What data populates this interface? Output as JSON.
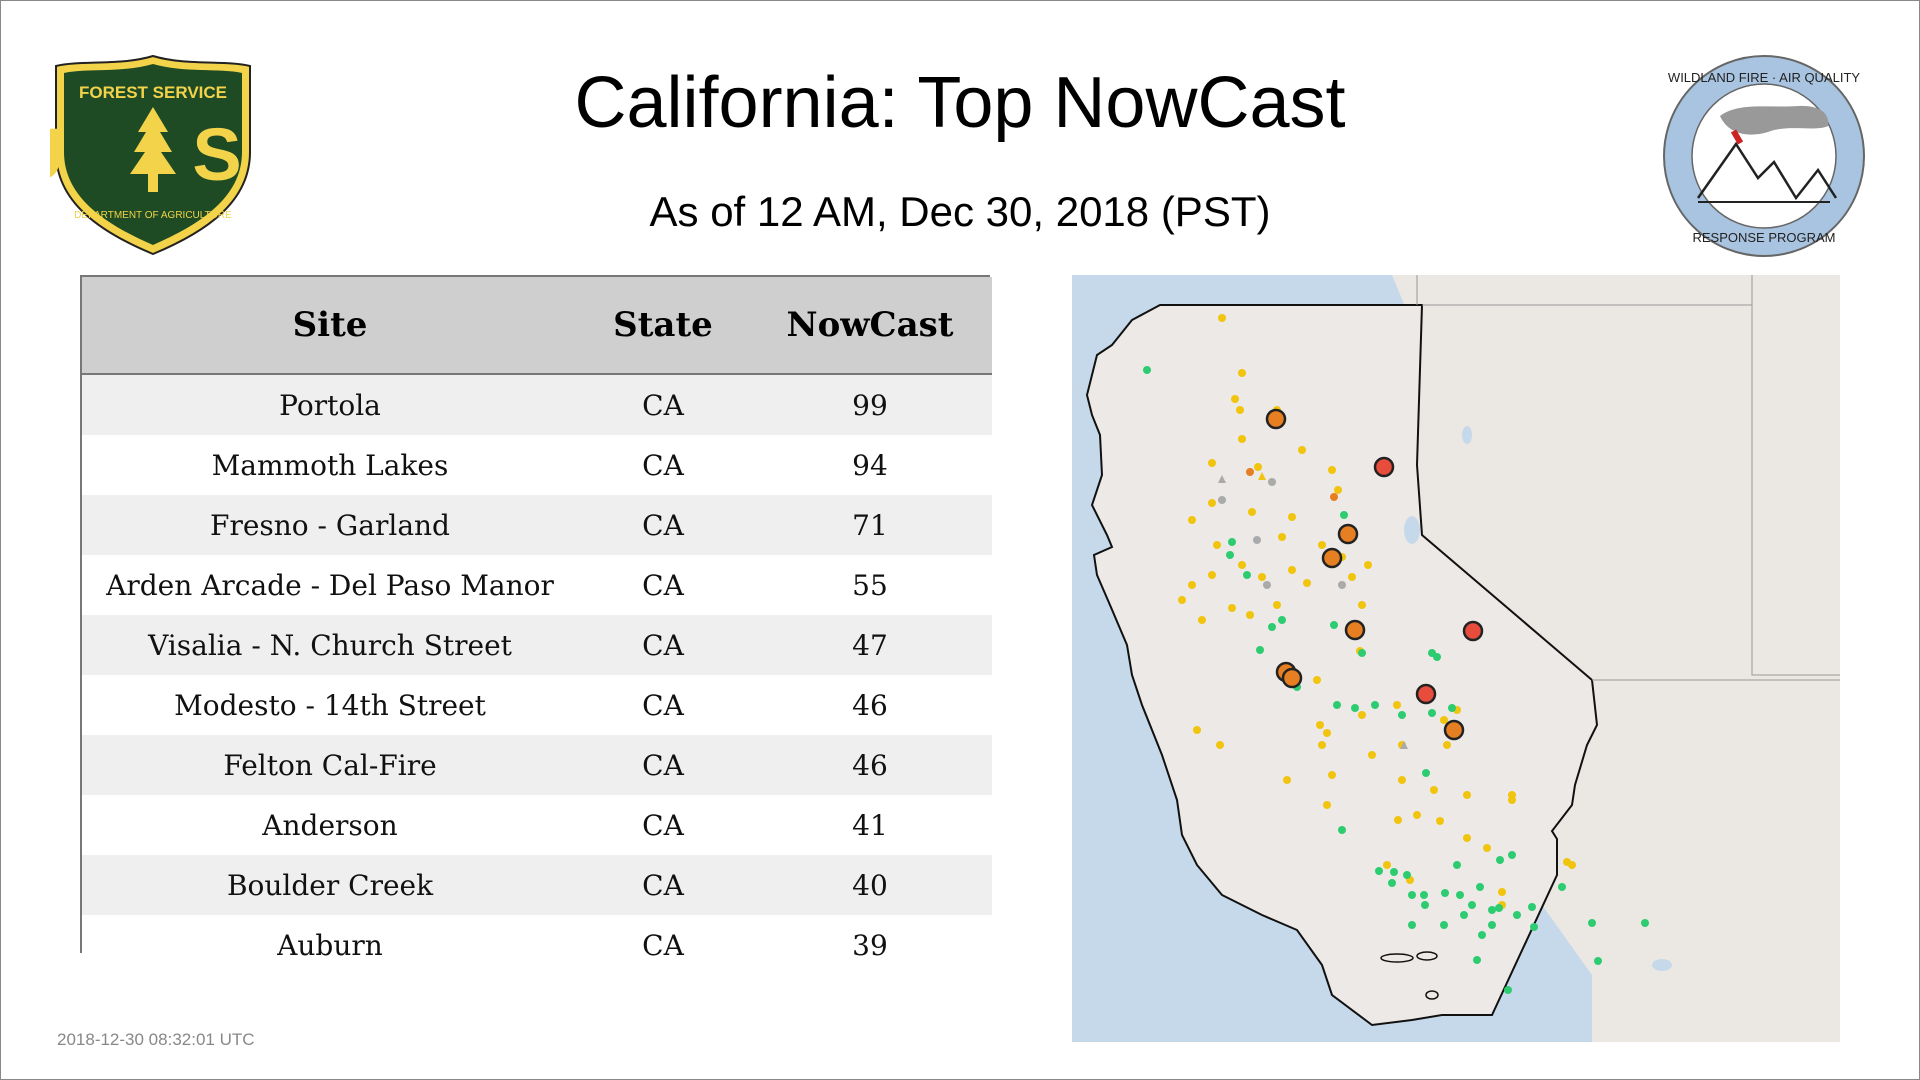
{
  "header": {
    "title": "California: Top NowCast",
    "subtitle": "As of 12 AM, Dec 30, 2018 (PST)"
  },
  "logos": {
    "usfs": {
      "top_text": "FOREST SERVICE",
      "letters": "U S",
      "bottom_text": "DEPARTMENT OF AGRICULTURE"
    },
    "wildland": {
      "top_text": "WILDLAND FIRE · AIR QUALITY",
      "bottom_text": "RESPONSE PROGRAM"
    }
  },
  "table": {
    "columns": [
      "Site",
      "State",
      "NowCast"
    ],
    "rows": [
      {
        "site": "Portola",
        "state": "CA",
        "nowcast": "99"
      },
      {
        "site": "Mammoth Lakes",
        "state": "CA",
        "nowcast": "94"
      },
      {
        "site": "Fresno - Garland",
        "state": "CA",
        "nowcast": "71"
      },
      {
        "site": "Arden Arcade - Del Paso Manor",
        "state": "CA",
        "nowcast": "55"
      },
      {
        "site": "Visalia - N. Church Street",
        "state": "CA",
        "nowcast": "47"
      },
      {
        "site": "Modesto - 14th Street",
        "state": "CA",
        "nowcast": "46"
      },
      {
        "site": "Felton Cal-Fire",
        "state": "CA",
        "nowcast": "46"
      },
      {
        "site": "Anderson",
        "state": "CA",
        "nowcast": "41"
      },
      {
        "site": "Boulder Creek",
        "state": "CA",
        "nowcast": "40"
      },
      {
        "site": "Auburn",
        "state": "CA",
        "nowcast": "39"
      }
    ]
  },
  "colors": {
    "good": "#2ecc71",
    "moderate": "#f1c40f",
    "usg": "#e67e22",
    "unhealthy": "#e74c3c",
    "no_data": "#aaaaaa",
    "ocean": "#c6d9ea",
    "land": "#ece9e6"
  },
  "footer": {
    "timestamp": "2018-12-30 08:32:01 UTC"
  }
}
